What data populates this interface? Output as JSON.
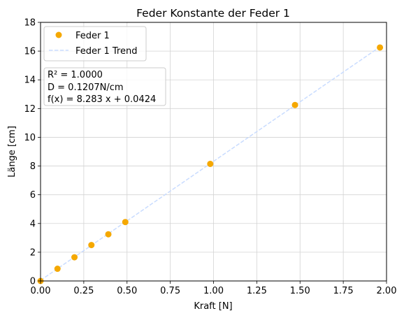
{
  "chart_data": {
    "type": "scatter",
    "title": "Feder Konstante der Feder 1",
    "xlabel": "Kraft [N]",
    "ylabel": "Länge [cm]",
    "xlim": [
      0,
      2.0
    ],
    "ylim": [
      0,
      18
    ],
    "x_ticks": [
      "0.00",
      "0.25",
      "0.50",
      "0.75",
      "1.00",
      "1.25",
      "1.50",
      "1.75",
      "2.00"
    ],
    "y_ticks": [
      "0",
      "2",
      "4",
      "6",
      "8",
      "10",
      "12",
      "14",
      "16",
      "18"
    ],
    "grid": true,
    "legend_position": "upper-left",
    "series": [
      {
        "name": "Feder 1",
        "kind": "scatter",
        "color": "#f5a800",
        "points": [
          {
            "x": 0.0,
            "y": 0.0
          },
          {
            "x": 0.098,
            "y": 0.85
          },
          {
            "x": 0.196,
            "y": 1.65
          },
          {
            "x": 0.294,
            "y": 2.5
          },
          {
            "x": 0.392,
            "y": 3.25
          },
          {
            "x": 0.49,
            "y": 4.1
          },
          {
            "x": 0.981,
            "y": 8.15
          },
          {
            "x": 1.471,
            "y": 12.25
          },
          {
            "x": 1.962,
            "y": 16.25
          }
        ]
      },
      {
        "name": "Feder 1 Trend",
        "kind": "line",
        "style": "dashed",
        "color": "#c9dcff",
        "slope": 8.283,
        "intercept": 0.0424
      }
    ],
    "annotation": {
      "lines": [
        "R² = 1.0000",
        "D = 0.1207N/cm",
        "f(x) = 8.283 x + 0.0424"
      ]
    }
  }
}
